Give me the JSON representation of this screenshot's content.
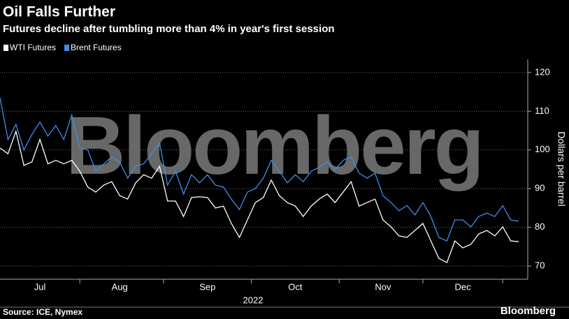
{
  "chart_data": {
    "type": "line",
    "title": "Oil Falls Further",
    "subtitle": "Futures decline after tumbling more than 4% in year's first session",
    "y_label": "Dollars per barrel",
    "year_label": "2022",
    "watermark": "Bloomberg",
    "source": "Source: ICE, Nymex",
    "logo": "Bloomberg",
    "categories": [
      null,
      null,
      null,
      null,
      null,
      "Jul",
      null,
      null,
      null,
      null,
      null,
      null,
      null,
      null,
      null,
      "Aug",
      null,
      null,
      null,
      null,
      null,
      null,
      null,
      null,
      null,
      null,
      "Sep",
      null,
      null,
      null,
      null,
      null,
      null,
      null,
      null,
      null,
      null,
      "Oct",
      null,
      null,
      null,
      null,
      null,
      null,
      null,
      null,
      null,
      null,
      "Nov",
      null,
      null,
      null,
      null,
      null,
      null,
      null,
      null,
      null,
      "Dec",
      null,
      null,
      null,
      null,
      null,
      null,
      null
    ],
    "series": [
      {
        "name": "WTI Futures",
        "color": "#ffffff",
        "values": [
          100.5,
          99,
          104.8,
          96,
          96.9,
          102.7,
          96.4,
          97.3,
          96.4,
          97.3,
          94.5,
          90.4,
          89.1,
          90.9,
          91.8,
          88.2,
          87.3,
          91.5,
          93.6,
          92.7,
          95.8,
          86.8,
          86.8,
          82.8,
          87.7,
          87.9,
          87.7,
          85,
          85.5,
          81,
          77.4,
          81.9,
          86.4,
          87.7,
          92.2,
          88.2,
          86.4,
          85.5,
          82.8,
          85.5,
          87.3,
          88.6,
          86.4,
          89.1,
          91.8,
          85.5,
          86.4,
          87.3,
          81.9,
          80.1,
          77.8,
          77.4,
          79.2,
          81,
          76.5,
          72,
          70.9,
          76.5,
          74.7,
          75.6,
          78.3,
          79.2,
          77.8,
          80.1,
          76.5,
          76.3
        ]
      },
      {
        "name": "Brent Futures",
        "color": "#3d8ee8",
        "values": [
          113.5,
          102.7,
          106.6,
          100,
          104,
          107.2,
          103.6,
          106.3,
          102.7,
          109,
          100.5,
          100,
          94.5,
          96.4,
          98.2,
          96.9,
          92.7,
          95.8,
          96.4,
          99.1,
          101.8,
          90.9,
          94.5,
          88.6,
          93.6,
          91.5,
          93.6,
          90.9,
          90.4,
          87.3,
          84.6,
          89.1,
          90,
          92.7,
          97.3,
          94.5,
          91.5,
          93.6,
          91.8,
          94.5,
          95.5,
          96.9,
          94.9,
          97.3,
          98.2,
          94,
          92.7,
          94,
          88.2,
          86.4,
          84.3,
          85.6,
          83.2,
          86.4,
          82.8,
          77.4,
          76.5,
          81.9,
          81.9,
          80.1,
          82.8,
          83.7,
          82.8,
          85.6,
          81.9,
          81.6
        ]
      }
    ],
    "ylim": [
      66.6,
      123.4
    ],
    "yticks": [
      70,
      80,
      90,
      100,
      110,
      120
    ],
    "grid": true
  }
}
